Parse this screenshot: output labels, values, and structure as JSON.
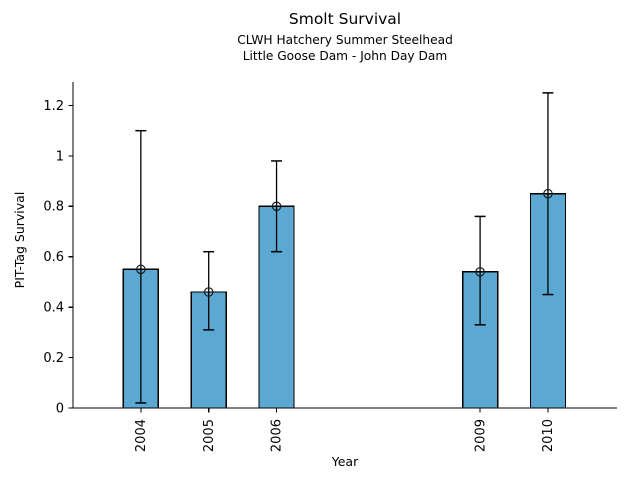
{
  "chart_data": {
    "type": "bar",
    "title": "Smolt Survival",
    "subtitle": [
      "CLWH Hatchery Summer Steelhead",
      "Little Goose Dam - John Day Dam"
    ],
    "xlabel": "Year",
    "ylabel": "PIT-Tag Survival",
    "categories": [
      2004,
      2005,
      2006,
      2009,
      2010
    ],
    "values": [
      0.55,
      0.46,
      0.8,
      0.54,
      0.85
    ],
    "error_low": [
      0.02,
      0.31,
      0.62,
      0.33,
      0.45
    ],
    "error_high": [
      1.1,
      0.62,
      0.98,
      0.76,
      1.25
    ],
    "xtick_labels": [
      "2004",
      "2005",
      "2006",
      "2009",
      "2010"
    ],
    "yticks": [
      0,
      0.2,
      0.4,
      0.6,
      0.8,
      1,
      1.2
    ],
    "ytick_labels": [
      "0",
      "0.2",
      "0.4",
      "0.6",
      "0.8",
      "1",
      "1.2"
    ],
    "xlim": [
      2003,
      2011
    ],
    "ylim": [
      0,
      1.29
    ],
    "grid": false,
    "legend": "none",
    "xtick_rotation_deg": 90,
    "bar_color": "#5BA8D3",
    "bar_edge_color": "#000000",
    "error_color": "#000000",
    "marker": "open-circle",
    "marker_color": "#1a1a1a"
  }
}
